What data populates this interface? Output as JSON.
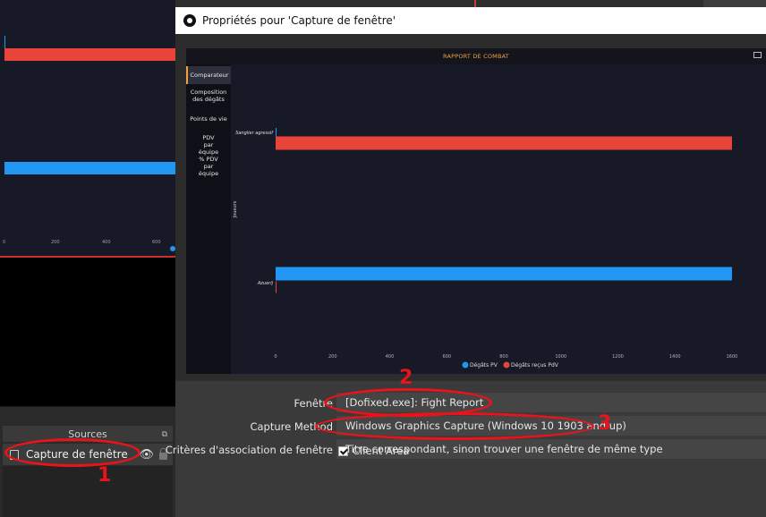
{
  "colors": {
    "accent_orange": "#f0a23a",
    "bar_red": "#e8443a",
    "bar_blue": "#2196f3",
    "annotation_red": "#e8141a"
  },
  "background_chart": {
    "ticks": [
      "0",
      "200",
      "400",
      "600"
    ]
  },
  "sources_panel": {
    "title": "Sources",
    "items": [
      {
        "label": "Capture de fenêtre",
        "visible_icon": "eye-icon",
        "lock_icon": "lock-icon"
      }
    ]
  },
  "dialog": {
    "title": "Propriétés pour 'Capture de fenêtre'",
    "window_label": "Fenêtre",
    "window_value": "[Dofixed.exe]: Fight Report",
    "method_label": "Capture Method",
    "method_value": "Windows Graphics Capture (Windows 10 1903 and up)",
    "match_label": "Critères d'association de fenêtre",
    "match_value": "Titre correspondant, sinon trouver une fenêtre de même type",
    "client_area_label": "Client Area",
    "client_area_checked": true
  },
  "captured_app": {
    "title": "RAPPORT DE COMBAT",
    "sidebar": [
      "Comparateur",
      "Composition des dégâts",
      "Points de vie",
      "PDV par équipe",
      "% PDV par équipe"
    ],
    "active_tab": "Comparateur"
  },
  "chart_data": {
    "type": "bar",
    "orientation": "horizontal",
    "title": "",
    "xlabel": "",
    "ylabel": "Joueurs",
    "categories": [
      "Sanglier agressif",
      "Azuerij"
    ],
    "series": [
      {
        "name": "Dégâts PV",
        "color": "#2196f3",
        "values": [
          0,
          1600
        ]
      },
      {
        "name": "Dégâts reçus PdV",
        "color": "#e8443a",
        "values": [
          1600,
          0
        ]
      }
    ],
    "xlim": [
      0,
      1600
    ],
    "xticks": [
      "0",
      "200",
      "400",
      "600",
      "800",
      "1000",
      "1200",
      "1400",
      "1600"
    ],
    "legend": "bottom"
  },
  "annotations": [
    "1",
    "2",
    "3"
  ]
}
